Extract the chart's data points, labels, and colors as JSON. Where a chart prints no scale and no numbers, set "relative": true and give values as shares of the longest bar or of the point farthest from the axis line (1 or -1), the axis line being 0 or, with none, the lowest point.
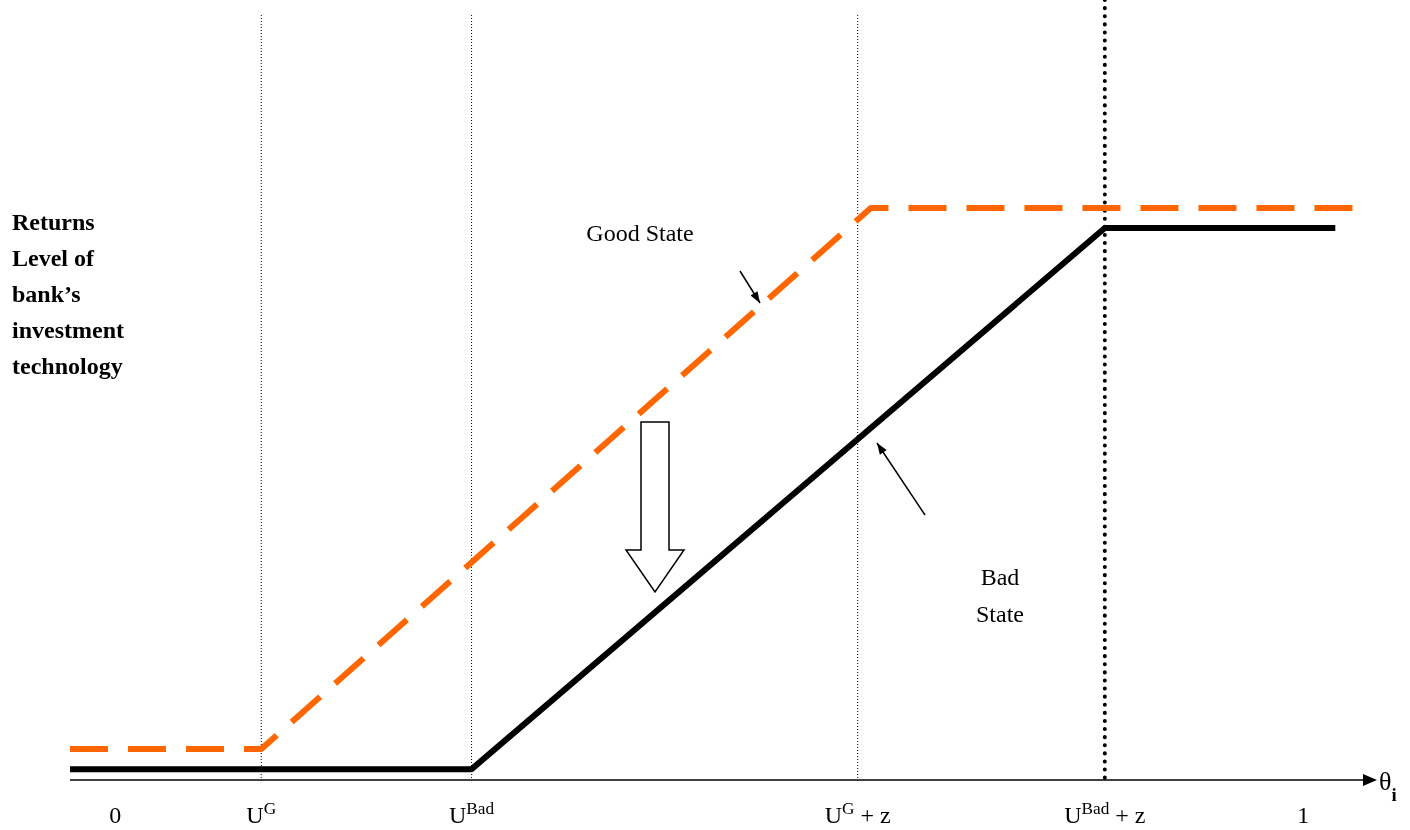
{
  "chart_data": {
    "type": "line",
    "relative": true,
    "xlabel": "θ$_{i}$",
    "ylabel": "Returns Level of bank’s investment technology",
    "xlim": [
      -0.038,
      1.052
    ],
    "xticks": [
      0,
      {
        "value": 0.123,
        "label": "U$^{G}$"
      },
      {
        "value": 0.3,
        "label": "U$^{Bad}$"
      },
      {
        "value": 0.625,
        "label": "U$^{G}$ + z"
      },
      {
        "value": 0.833,
        "label": "U$^{Bad}$ + z"
      },
      1
    ],
    "series": [
      {
        "color": "#ff6600",
        "line_style": "dashed",
        "x": [
          -0.038,
          0.123,
          0.636,
          1.044
        ],
        "values": [
          0.054,
          0.054,
          1,
          1
        ]
      },
      {
        "color": "#000000",
        "line_style": "solid",
        "x": [
          -0.038,
          0.3,
          0.833,
          1.027
        ],
        "values": [
          0.019,
          0.019,
          0.965,
          0.965
        ]
      }
    ],
    "ref_lines": [
      {
        "axis": "x",
        "value": 0.123,
        "color": "#000000",
        "line_style": "dotted"
      },
      {
        "axis": "x",
        "value": 0.3,
        "color": "#000000",
        "line_style": "dotted"
      },
      {
        "axis": "x",
        "value": 0.625,
        "color": "#000000",
        "line_style": "dotted"
      },
      {
        "axis": "x",
        "value": 0.833,
        "color": "#000000",
        "line_style": "dotted"
      }
    ],
    "annotations": [
      "Good State",
      "Bad State"
    ],
    "legend": false,
    "grid": false
  }
}
